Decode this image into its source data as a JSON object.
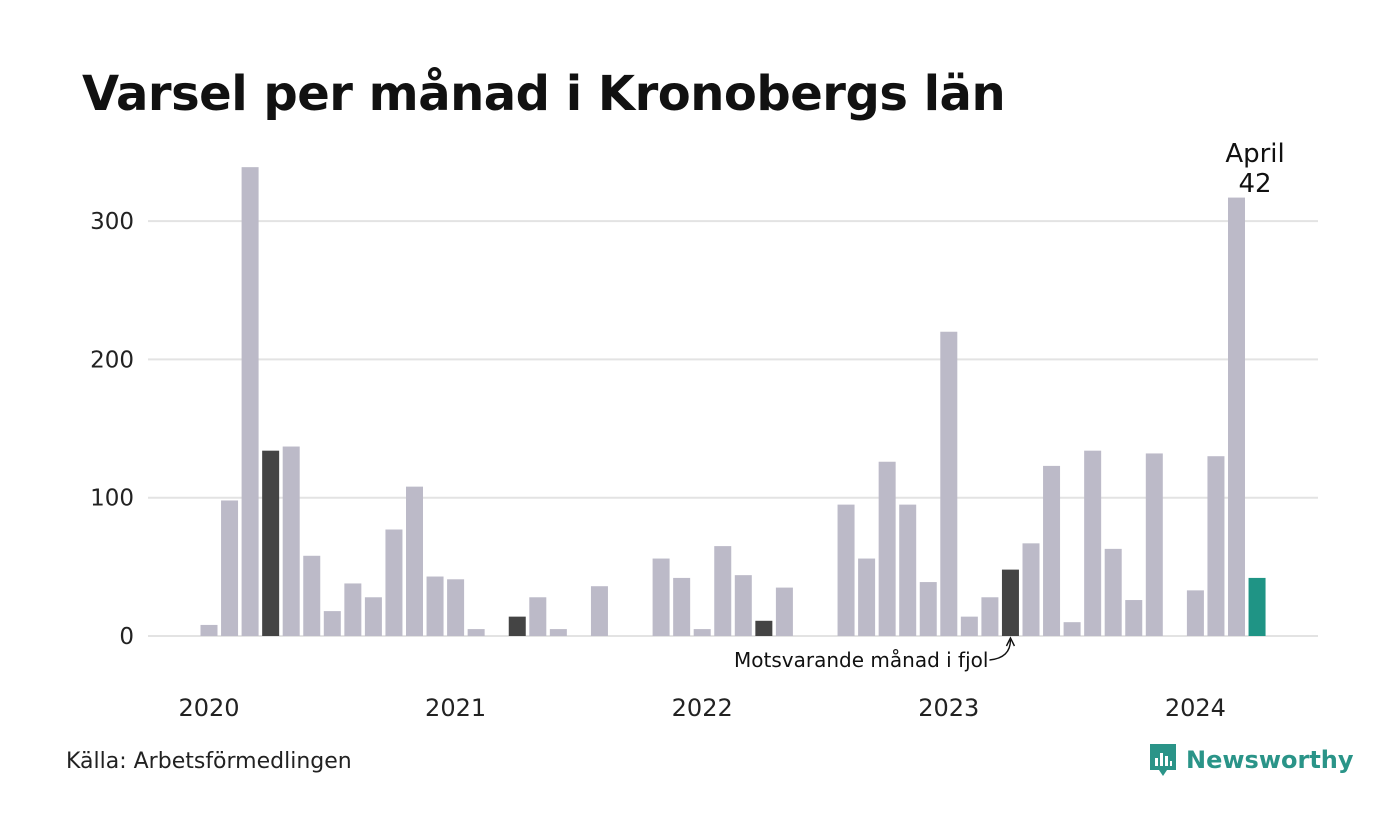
{
  "title": "Varsel per månad i Kronobergs län",
  "source": "Källa: Arbetsförmedlingen",
  "brand": {
    "name": "Newsworthy",
    "icon": "newsworthy-logo-icon",
    "color": "#2a9488"
  },
  "colors": {
    "bar": "#bcbac8",
    "same_month_last_year": "#444444",
    "current": "#1f9485",
    "grid": "#e3e3e3"
  },
  "chart_data": {
    "type": "bar",
    "title": "Varsel per månad i Kronobergs län",
    "x_tick_labels": [
      "2020",
      "2021",
      "2022",
      "2023",
      "2024"
    ],
    "ylim": [
      0,
      340
    ],
    "y_ticks": [
      0,
      100,
      200,
      300
    ],
    "grid": true,
    "months": [
      "2020-01",
      "2020-02",
      "2020-03",
      "2020-04",
      "2020-05",
      "2020-06",
      "2020-07",
      "2020-08",
      "2020-09",
      "2020-10",
      "2020-11",
      "2020-12",
      "2021-01",
      "2021-02",
      "2021-03",
      "2021-04",
      "2021-05",
      "2021-06",
      "2021-07",
      "2021-08",
      "2021-09",
      "2021-10",
      "2021-11",
      "2021-12",
      "2022-01",
      "2022-02",
      "2022-03",
      "2022-04",
      "2022-05",
      "2022-06",
      "2022-07",
      "2022-08",
      "2022-09",
      "2022-10",
      "2022-11",
      "2022-12",
      "2023-01",
      "2023-02",
      "2023-03",
      "2023-04",
      "2023-05",
      "2023-06",
      "2023-07",
      "2023-08",
      "2023-09",
      "2023-10",
      "2023-11",
      "2023-12",
      "2024-01",
      "2024-02",
      "2024-03",
      "2024-04"
    ],
    "values": [
      8,
      98,
      339,
      134,
      137,
      58,
      18,
      38,
      28,
      77,
      108,
      43,
      41,
      5,
      0,
      14,
      28,
      5,
      0,
      36,
      0,
      0,
      56,
      42,
      5,
      65,
      44,
      11,
      35,
      0,
      0,
      95,
      56,
      126,
      95,
      39,
      220,
      14,
      28,
      48,
      67,
      123,
      10,
      134,
      63,
      26,
      132,
      0,
      33,
      130,
      317,
      42
    ],
    "highlight_months": [
      "2020-04",
      "2021-04",
      "2022-04",
      "2023-04"
    ],
    "current_month": "2024-04",
    "current_label": {
      "month": "April",
      "value": "42"
    },
    "annotation": {
      "text": "Motsvarande månad i fjol",
      "month": "2023-04"
    }
  }
}
